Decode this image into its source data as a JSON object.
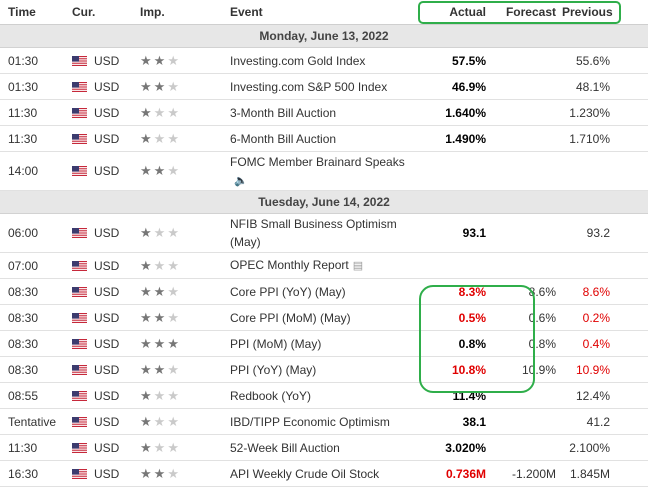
{
  "headers": {
    "time": "Time",
    "currency": "Cur.",
    "importance": "Imp.",
    "event": "Event",
    "actual": "Actual",
    "forecast": "Forecast",
    "previous": "Previous"
  },
  "icons": {
    "flag": "us-flag-icon",
    "star": "star-icon",
    "speaker": "speaker-icon",
    "report": "report-icon"
  },
  "colors": {
    "positive": "#000000",
    "negative": "#e00000",
    "highlight": "#2fae4a"
  },
  "days": [
    {
      "label": "Monday, June 13, 2022",
      "rows": [
        {
          "time": "01:30",
          "currency": "USD",
          "importance": 2,
          "event": "Investing.com Gold Index",
          "actual": "57.5%",
          "actual_color": "dark",
          "forecast": "",
          "previous": "55.6%",
          "previous_color": ""
        },
        {
          "time": "01:30",
          "currency": "USD",
          "importance": 2,
          "event": "Investing.com S&P 500 Index",
          "actual": "46.9%",
          "actual_color": "dark",
          "forecast": "",
          "previous": "48.1%",
          "previous_color": ""
        },
        {
          "time": "11:30",
          "currency": "USD",
          "importance": 1,
          "event": "3-Month Bill Auction",
          "actual": "1.640%",
          "actual_color": "dark",
          "forecast": "",
          "previous": "1.230%",
          "previous_color": ""
        },
        {
          "time": "11:30",
          "currency": "USD",
          "importance": 1,
          "event": "6-Month Bill Auction",
          "actual": "1.490%",
          "actual_color": "dark",
          "forecast": "",
          "previous": "1.710%",
          "previous_color": ""
        },
        {
          "time": "14:00",
          "currency": "USD",
          "importance": 2,
          "event": "FOMC Member Brainard Speaks",
          "icon": "speaker",
          "actual": "",
          "actual_color": "",
          "forecast": "",
          "previous": "",
          "previous_color": ""
        }
      ]
    },
    {
      "label": "Tuesday, June 14, 2022",
      "rows": [
        {
          "time": "06:00",
          "currency": "USD",
          "importance": 1,
          "event": "NFIB Small Business Optimism (May)",
          "actual": "93.1",
          "actual_color": "dark",
          "forecast": "",
          "previous": "93.2",
          "previous_color": ""
        },
        {
          "time": "07:00",
          "currency": "USD",
          "importance": 1,
          "event": "OPEC Monthly Report",
          "icon": "report",
          "actual": "",
          "actual_color": "",
          "forecast": "",
          "previous": "",
          "previous_color": ""
        },
        {
          "time": "08:30",
          "currency": "USD",
          "importance": 2,
          "event": "Core PPI (YoY) (May)",
          "actual": "8.3%",
          "actual_color": "red",
          "forecast": "8.6%",
          "previous": "8.6%",
          "previous_color": "red"
        },
        {
          "time": "08:30",
          "currency": "USD",
          "importance": 2,
          "event": "Core PPI (MoM) (May)",
          "actual": "0.5%",
          "actual_color": "red",
          "forecast": "0.6%",
          "previous": "0.2%",
          "previous_color": "red"
        },
        {
          "time": "08:30",
          "currency": "USD",
          "importance": 3,
          "event": "PPI (MoM) (May)",
          "actual": "0.8%",
          "actual_color": "dark",
          "forecast": "0.8%",
          "previous": "0.4%",
          "previous_color": "red"
        },
        {
          "time": "08:30",
          "currency": "USD",
          "importance": 2,
          "event": "PPI (YoY) (May)",
          "actual": "10.8%",
          "actual_color": "red",
          "forecast": "10.9%",
          "previous": "10.9%",
          "previous_color": "red"
        },
        {
          "time": "08:55",
          "currency": "USD",
          "importance": 1,
          "event": "Redbook (YoY)",
          "actual": "11.4%",
          "actual_color": "dark",
          "forecast": "",
          "previous": "12.4%",
          "previous_color": ""
        },
        {
          "time": "Tentative",
          "currency": "USD",
          "importance": 1,
          "event": "IBD/TIPP Economic Optimism",
          "actual": "38.1",
          "actual_color": "dark",
          "forecast": "",
          "previous": "41.2",
          "previous_color": ""
        },
        {
          "time": "11:30",
          "currency": "USD",
          "importance": 1,
          "event": "52-Week Bill Auction",
          "actual": "3.020%",
          "actual_color": "dark",
          "forecast": "",
          "previous": "2.100%",
          "previous_color": ""
        },
        {
          "time": "16:30",
          "currency": "USD",
          "importance": 2,
          "event": "API Weekly Crude Oil Stock",
          "actual": "0.736M",
          "actual_color": "red",
          "forecast": "-1.200M",
          "previous": "1.845M",
          "previous_color": ""
        }
      ]
    }
  ]
}
